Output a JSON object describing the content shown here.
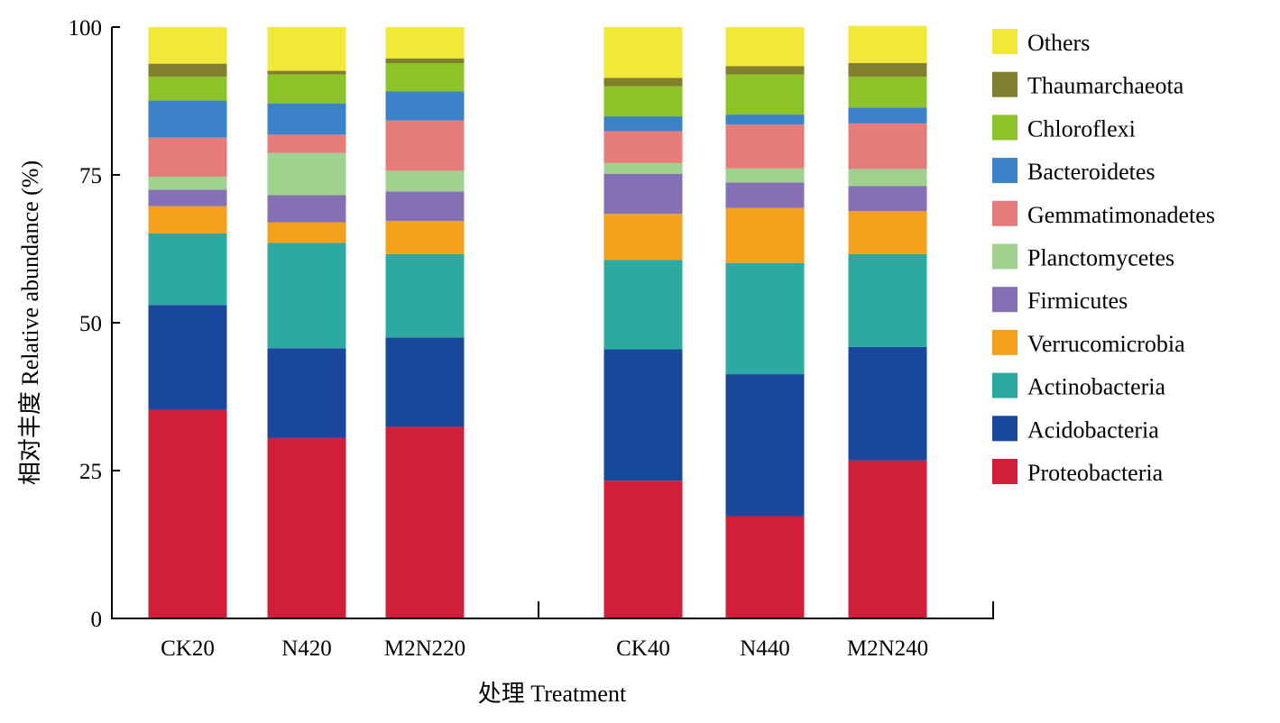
{
  "chart_data": {
    "type": "bar",
    "stacked": true,
    "xlabel": "处理 Treatment",
    "ylabel": "相对丰度 Relative abundance (%)",
    "ylim": [
      0,
      100
    ],
    "yticks": [
      0,
      25,
      50,
      75,
      100
    ],
    "grid": false,
    "legend_position": "right",
    "categories": [
      "CK20",
      "N420",
      "M2N220",
      "CK40",
      "N440",
      "M2N240"
    ],
    "series": [
      {
        "name": "Proteobacteria",
        "color": "#d01f3a",
        "values": [
          35.3,
          30.5,
          32.4,
          23.3,
          17.3,
          26.7
        ]
      },
      {
        "name": "Acidobacteria",
        "color": "#19479c",
        "values": [
          17.7,
          15.2,
          15.1,
          22.2,
          24.0,
          19.2
        ]
      },
      {
        "name": "Actinobacteria",
        "color": "#2ca9a1",
        "values": [
          12.1,
          17.8,
          14.1,
          15.1,
          18.8,
          15.7
        ]
      },
      {
        "name": "Verrucomicrobia",
        "color": "#f4a11d",
        "values": [
          4.6,
          3.5,
          5.6,
          7.8,
          9.3,
          7.3
        ]
      },
      {
        "name": "Firmicutes",
        "color": "#8570b3",
        "values": [
          2.8,
          4.6,
          5.0,
          6.8,
          4.3,
          4.2
        ]
      },
      {
        "name": "Planctomycetes",
        "color": "#9ed28e",
        "values": [
          2.2,
          7.1,
          3.5,
          1.8,
          2.4,
          2.9
        ]
      },
      {
        "name": "Gemmatimonadetes",
        "color": "#e57c7a",
        "values": [
          6.6,
          3.1,
          8.5,
          5.4,
          7.4,
          7.7
        ]
      },
      {
        "name": "Bacteroidetes",
        "color": "#3b82c8",
        "values": [
          6.3,
          5.3,
          4.9,
          2.5,
          1.7,
          2.7
        ]
      },
      {
        "name": "Chloroflexi",
        "color": "#8cc328",
        "values": [
          4.0,
          4.9,
          4.8,
          5.1,
          6.8,
          5.2
        ]
      },
      {
        "name": "Thaumarchaeota",
        "color": "#7f7f2e",
        "values": [
          2.2,
          0.6,
          0.8,
          1.4,
          1.4,
          2.3
        ]
      },
      {
        "name": "Others",
        "color": "#f1e83a",
        "values": [
          6.2,
          7.4,
          5.3,
          8.6,
          6.6,
          6.3
        ]
      }
    ]
  }
}
